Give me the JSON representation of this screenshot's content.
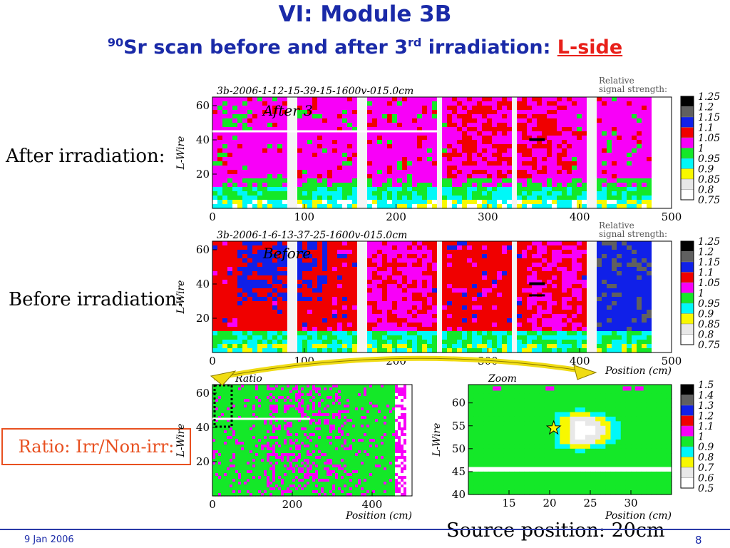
{
  "slide": {
    "title": "VI: Module 3B",
    "subtitle_sup1": "90",
    "subtitle_part1": "Sr scan before and after 3",
    "subtitle_sup2": "rd",
    "subtitle_part2": " irradiation: ",
    "subtitle_link": "L-side",
    "after_label": "After irradiation:",
    "before_label": "Before irradiation:",
    "ratio_label": "Ratio: Irr/Non-irr:",
    "source_position": "Source position: 20cm",
    "footer_date": "9 Jan 2006",
    "page_number": "8"
  },
  "colors": {
    "title": "#1a2aa8",
    "accent": "#e8201a",
    "arrow": "#f0dc14",
    "palette": [
      "#ffffff",
      "#e8e8e8",
      "#f8f800",
      "#00f8f8",
      "#14e828",
      "#f800f8",
      "#f00000",
      "#1020e8",
      "#606060",
      "#000000"
    ]
  },
  "chart_data": [
    {
      "type": "heatmap",
      "title": "3b-2006-1-12-15-39-15-1600v-015.0cm",
      "annotation": "After 3",
      "xlabel": "",
      "ylabel": "L-Wire",
      "xlim": [
        0,
        500
      ],
      "ylim": [
        0,
        65
      ],
      "x_ticks": [
        "0",
        "100",
        "200",
        "300",
        "400",
        "500"
      ],
      "y_ticks": [
        "20",
        "40",
        "60"
      ],
      "colorbar_title": "Relative signal strength:",
      "colorbar_levels": [
        "1.25",
        "1.2",
        "1.15",
        "1.1",
        "1.05",
        "1",
        "0.95",
        "0.9",
        "0.85",
        "0.8",
        "0.75"
      ],
      "dominant_level": 1.05,
      "gap_positions_cm": [
        85,
        160,
        243,
        327,
        410
      ],
      "source_x_cm": 355,
      "source_y_wire": 40
    },
    {
      "type": "heatmap",
      "title": "3b-2006-1-6-13-37-25-1600v-015.0cm",
      "annotation": "Before",
      "xlabel": "Position (cm)",
      "ylabel": "L-Wire",
      "xlim": [
        0,
        500
      ],
      "ylim": [
        0,
        65
      ],
      "x_ticks": [
        "0",
        "100",
        "200",
        "300",
        "400",
        "500"
      ],
      "y_ticks": [
        "20",
        "40",
        "60"
      ],
      "colorbar_title": "Relative signal strength:",
      "colorbar_levels": [
        "1.25",
        "1.2",
        "1.15",
        "1.1",
        "1.05",
        "1",
        "0.95",
        "0.9",
        "0.85",
        "0.8",
        "0.75"
      ],
      "dominant_level": 1.1,
      "gap_positions_cm": [
        85,
        160,
        243,
        327,
        410
      ],
      "source_x_cm": 355,
      "source_y_wire": 40
    },
    {
      "type": "heatmap",
      "title": "Ratio",
      "xlabel": "Position (cm)",
      "ylabel": "L-Wire",
      "xlim": [
        0,
        500
      ],
      "ylim": [
        0,
        65
      ],
      "x_ticks": [
        "0",
        "200",
        "400"
      ],
      "y_ticks": [
        "20",
        "40",
        "60"
      ],
      "dominant_level": 1.0
    },
    {
      "type": "heatmap",
      "title": "Zoom",
      "xlabel": "Position (cm)",
      "ylabel": "L-Wire",
      "xlim": [
        10,
        35
      ],
      "ylim": [
        40,
        64
      ],
      "x_ticks": [
        "15",
        "20",
        "25",
        "30"
      ],
      "y_ticks": [
        "40",
        "45",
        "50",
        "55",
        "60"
      ],
      "colorbar_levels": [
        "1.5",
        "1.4",
        "1.3",
        "1.2",
        "1.1",
        "1",
        "0.9",
        "0.8",
        "0.7",
        "0.6",
        "0.5"
      ],
      "dominant_level": 1.0,
      "source_marker": {
        "x": 20.5,
        "y": 54.5
      }
    }
  ]
}
